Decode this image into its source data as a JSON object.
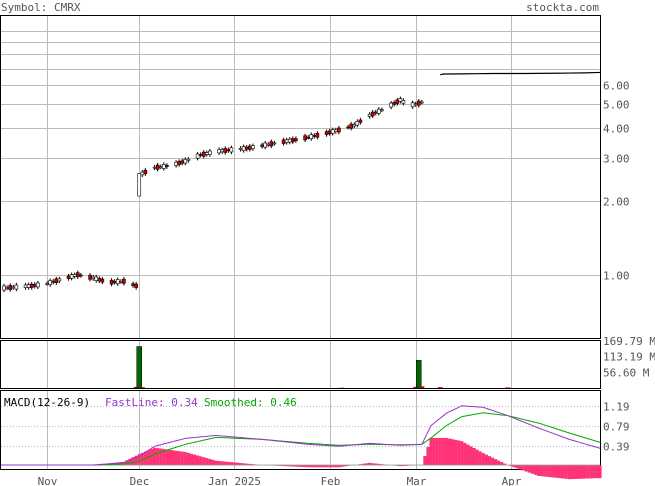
{
  "header": {
    "symbol_label": "Symbol: CMRX",
    "site": "stockta.com"
  },
  "price_axis": {
    "ticks": [
      "6.00",
      "5.00",
      "4.00",
      "3.00",
      "2.00",
      "1.00"
    ],
    "tick_values": [
      6,
      5,
      4,
      3,
      2,
      1
    ],
    "extra_lines": [
      7,
      8,
      9,
      10
    ],
    "ylim": [
      0.55,
      11.5
    ],
    "scale": "log"
  },
  "volume_axis": {
    "ticks": [
      "169.79 M",
      "113.19 M",
      "56.60 M"
    ],
    "tick_values": [
      169.79,
      113.19,
      56.6
    ],
    "ylim": [
      0,
      170
    ]
  },
  "macd_axis": {
    "ticks": [
      "1.19",
      "0.79",
      "0.39"
    ],
    "tick_values": [
      1.19,
      0.79,
      0.39
    ],
    "ylim": [
      -0.08,
      1.5
    ]
  },
  "x_axis": {
    "labels": [
      "Nov",
      "Dec",
      "Jan 2025",
      "Feb",
      "Mar",
      "Apr"
    ],
    "label_days": [
      0,
      30,
      61,
      92,
      120,
      151
    ]
  },
  "macd_legend": {
    "title": "MACD(12-26-9)",
    "fast": "FastLine: 0.34",
    "smooth": "Smoothed: 0.46"
  },
  "colors": {
    "up": "#ffffff",
    "down": "#cc0000",
    "volume": "#006600",
    "fastline": "#9933cc",
    "smoothed": "#00aa00",
    "histogram": "#ff3377",
    "grid": "#bbbbbb",
    "axis_text": "#555555"
  },
  "chart_data": {
    "type": "line",
    "price_series": {
      "name": "CMRX",
      "x": [
        -15,
        -10,
        -5,
        0,
        5,
        10,
        15,
        20,
        25,
        29,
        30,
        31,
        35,
        40,
        45,
        50,
        55,
        60,
        65,
        70,
        75,
        80,
        85,
        90,
        95,
        100,
        105,
        110,
        115,
        118,
        120,
        122,
        125,
        128,
        129,
        130,
        135,
        140,
        145,
        150,
        155,
        160,
        165,
        170,
        175,
        180
      ],
      "y": [
        0.88,
        0.89,
        0.9,
        0.92,
        0.96,
        1.0,
        0.97,
        0.93,
        0.94,
        0.9,
        2.2,
        2.6,
        2.75,
        2.8,
        2.92,
        3.1,
        3.2,
        3.25,
        3.3,
        3.38,
        3.48,
        3.56,
        3.66,
        3.78,
        3.92,
        4.1,
        4.5,
        4.8,
        5.2,
        4.95,
        5.0,
        5.1,
        5.1,
        6.6,
        6.65,
        6.65,
        6.66,
        6.67,
        6.68,
        6.68,
        6.68,
        6.69,
        6.7,
        6.71,
        6.72,
        6.75
      ]
    },
    "volume_series": {
      "name": "Volume",
      "x": [
        29,
        30,
        31,
        96,
        120,
        121,
        122,
        128,
        150
      ],
      "y": [
        4,
        150,
        3,
        1,
        4,
        100,
        6,
        3,
        2
      ]
    },
    "macd_fast": {
      "name": "FastLine",
      "x": [
        -15,
        0,
        15,
        25,
        30,
        35,
        45,
        55,
        70,
        85,
        95,
        105,
        115,
        122,
        125,
        130,
        135,
        142,
        150,
        160,
        170,
        180
      ],
      "y": [
        0.0,
        0.0,
        0.0,
        0.05,
        0.18,
        0.38,
        0.54,
        0.6,
        0.52,
        0.42,
        0.38,
        0.44,
        0.4,
        0.42,
        0.8,
        1.05,
        1.2,
        1.17,
        1.0,
        0.75,
        0.52,
        0.34
      ]
    },
    "macd_smooth": {
      "name": "Smoothed",
      "x": [
        -15,
        0,
        15,
        25,
        30,
        35,
        45,
        55,
        70,
        85,
        95,
        105,
        115,
        122,
        125,
        130,
        135,
        142,
        150,
        160,
        170,
        180
      ],
      "y": [
        0.0,
        0.0,
        0.0,
        0.02,
        0.08,
        0.22,
        0.42,
        0.56,
        0.52,
        0.44,
        0.4,
        0.42,
        0.41,
        0.42,
        0.55,
        0.8,
        0.98,
        1.06,
        1.0,
        0.85,
        0.65,
        0.46
      ]
    }
  }
}
